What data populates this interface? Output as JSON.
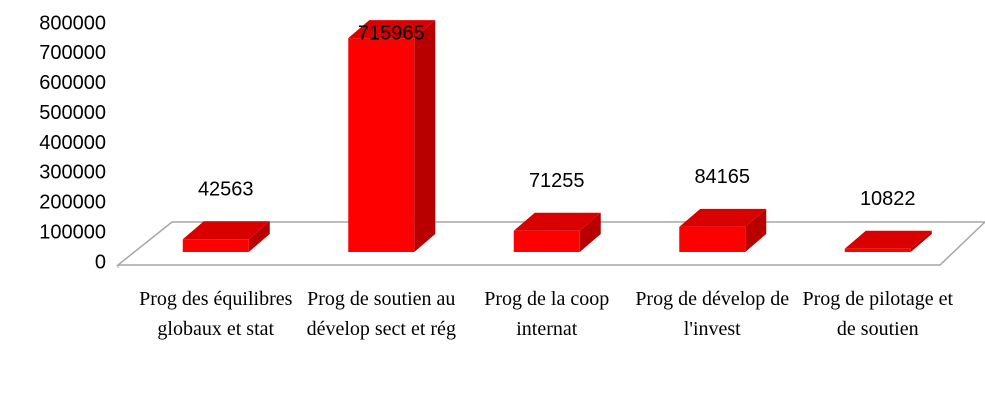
{
  "chart_data": {
    "type": "bar3d",
    "categories": [
      "Prog des équilibres globaux et stat",
      "Prog de soutien au dévelop sect et rég",
      "Prog de la coop internat",
      "Prog de dévelop de l'invest",
      "Prog de pilotage et de soutien"
    ],
    "values": [
      42563,
      715965,
      71255,
      84165,
      10822
    ],
    "color": "#ff0000",
    "ylim": [
      0,
      800000
    ],
    "yticks": [
      0,
      100000,
      200000,
      300000,
      400000,
      500000,
      600000,
      700000,
      800000
    ]
  }
}
